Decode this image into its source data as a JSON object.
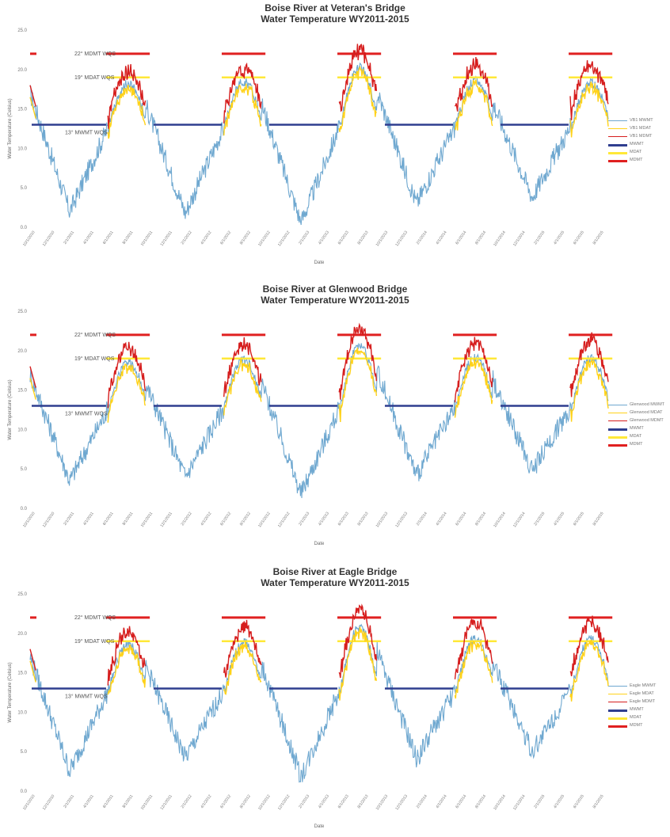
{
  "chart_data": [
    {
      "type": "line",
      "title": "Boise River at Veteran's Bridge",
      "subtitle": "Water Temperature WY2011-2015",
      "xlabel": "Date",
      "ylabel": "Water Temperature (Celsius)",
      "ylim": [
        0,
        25
      ],
      "yticks": [
        "0.0",
        "5.0",
        "10.0",
        "15.0",
        "20.0",
        "25.0"
      ],
      "xticks": [
        "10/1/2010",
        "12/1/2010",
        "2/1/2011",
        "4/1/2011",
        "6/1/2011",
        "8/1/2011",
        "10/1/2011",
        "12/1/2011",
        "2/1/2012",
        "4/1/2012",
        "6/1/2012",
        "8/1/2012",
        "10/1/2012",
        "12/1/2012",
        "2/1/2013",
        "4/1/2013",
        "6/1/2013",
        "8/1/2013",
        "10/1/2013",
        "12/1/2013",
        "2/1/2014",
        "4/1/2014",
        "6/1/2014",
        "8/1/2014",
        "10/1/2014",
        "12/1/2014",
        "2/1/2015",
        "4/1/2015",
        "6/1/2015",
        "8/1/2015"
      ],
      "annotations": [
        {
          "text": "22° MDMT WQS",
          "y": 22
        },
        {
          "text": "19° MDAT WQS",
          "y": 19
        },
        {
          "text": "13° MWMT WQS",
          "y": 13
        }
      ],
      "series": [
        {
          "name": "VB1 MWMT",
          "color": "#6fa8d0"
        },
        {
          "name": "VB1 MDAT",
          "color": "#ffd21a"
        },
        {
          "name": "VB1 MDMT",
          "color": "#d61e1e"
        },
        {
          "name": "MWMT",
          "color": "#2f3e8f"
        },
        {
          "name": "MDAT",
          "color": "#ffe838"
        },
        {
          "name": "MDMT",
          "color": "#e02020"
        }
      ],
      "grid": false,
      "legend": "right",
      "seasons": [
        {
          "base": 13.0,
          "peak": 18.2,
          "mdmtPeak": 19.0
        },
        {
          "base": 13.0,
          "peak": 18.5,
          "mdmtPeak": 19.5
        },
        {
          "base": 13.0,
          "peak": 20.2,
          "mdmtPeak": 21.8
        },
        {
          "base": 13.0,
          "peak": 18.6,
          "mdmtPeak": 19.8
        },
        {
          "base": 13.0,
          "peak": 18.3,
          "mdmtPeak": 19.8
        }
      ],
      "winterMins": [
        2.0,
        1.8,
        0.6,
        3.0,
        3.8
      ]
    },
    {
      "type": "line",
      "title": "Boise River at Glenwood Bridge",
      "subtitle": "Water Temperature WY2011-2015",
      "xlabel": "Date",
      "ylabel": "Water Temperature (Celsius)",
      "ylim": [
        0,
        25
      ],
      "yticks": [
        "0.0",
        "5.0",
        "10.0",
        "15.0",
        "20.0",
        "25.0"
      ],
      "xticks": [
        "10/1/2010",
        "12/1/2010",
        "2/1/2011",
        "4/1/2011",
        "6/1/2011",
        "8/1/2011",
        "10/1/2011",
        "12/1/2011",
        "2/1/2012",
        "4/1/2012",
        "6/1/2012",
        "8/1/2012",
        "10/1/2012",
        "12/1/2012",
        "2/1/2013",
        "4/1/2013",
        "6/1/2013",
        "8/1/2013",
        "10/1/2013",
        "12/1/2013",
        "2/1/2014",
        "4/1/2014",
        "6/1/2014",
        "8/1/2014",
        "10/1/2014",
        "12/1/2014",
        "2/1/2015",
        "4/1/2015",
        "6/1/2015",
        "8/1/2015"
      ],
      "annotations": [
        {
          "text": "22° MDMT WQS",
          "y": 22
        },
        {
          "text": "19° MDAT WQS",
          "y": 19
        },
        {
          "text": "13° MWMT WQS",
          "y": 13
        }
      ],
      "series": [
        {
          "name": "Glenwood MWMT",
          "color": "#6fa8d0"
        },
        {
          "name": "Glenwood MDAT",
          "color": "#ffd21a"
        },
        {
          "name": "Glenwood MDMT",
          "color": "#d61e1e"
        },
        {
          "name": "MWMT",
          "color": "#2f3e8f"
        },
        {
          "name": "MDAT",
          "color": "#ffe838"
        },
        {
          "name": "MDMT",
          "color": "#e02020"
        }
      ],
      "grid": false,
      "legend": "right",
      "seasons": [
        {
          "base": 13.0,
          "peak": 18.5,
          "mdmtPeak": 19.6
        },
        {
          "base": 13.0,
          "peak": 18.8,
          "mdmtPeak": 20.0
        },
        {
          "base": 13.0,
          "peak": 20.6,
          "mdmtPeak": 22.0
        },
        {
          "base": 13.0,
          "peak": 19.2,
          "mdmtPeak": 20.4
        },
        {
          "base": 13.0,
          "peak": 19.0,
          "mdmtPeak": 20.6
        }
      ],
      "winterMins": [
        3.5,
        4.0,
        1.8,
        4.2,
        4.8
      ]
    },
    {
      "type": "line",
      "title": "Boise River at Eagle Bridge",
      "subtitle": "Water Temperature WY2011-2015",
      "xlabel": "Date",
      "ylabel": "Water Temperature (Celsius)",
      "ylim": [
        0,
        25
      ],
      "yticks": [
        "0.0",
        "5.0",
        "10.0",
        "15.0",
        "20.0",
        "25.0"
      ],
      "xticks": [
        "10/1/2010",
        "12/1/2010",
        "2/1/2011",
        "4/1/2011",
        "6/1/2011",
        "8/1/2011",
        "10/1/2011",
        "12/1/2011",
        "2/1/2012",
        "4/1/2012",
        "6/1/2012",
        "8/1/2012",
        "10/1/2012",
        "12/1/2012",
        "2/1/2013",
        "4/1/2013",
        "6/1/2013",
        "8/1/2013",
        "10/1/2013",
        "12/1/2013",
        "2/1/2014",
        "4/1/2014",
        "6/1/2014",
        "8/1/2014",
        "10/1/2014",
        "12/1/2014",
        "2/1/2015",
        "4/1/2015",
        "6/1/2015",
        "8/1/2015"
      ],
      "annotations": [
        {
          "text": "22° MDMT WQS",
          "y": 22
        },
        {
          "text": "19° MDAT WQS",
          "y": 19
        },
        {
          "text": "13° MWMT WQS",
          "y": 13
        }
      ],
      "series": [
        {
          "name": "Eagle MWMT",
          "color": "#6fa8d0"
        },
        {
          "name": "Eagle MDAT",
          "color": "#ffd21a"
        },
        {
          "name": "Eagle MDMT",
          "color": "#d61e1e"
        },
        {
          "name": "MWMT",
          "color": "#2f3e8f"
        },
        {
          "name": "MDAT",
          "color": "#ffe838"
        },
        {
          "name": "MDMT",
          "color": "#e02020"
        }
      ],
      "grid": false,
      "legend": "right",
      "seasons": [
        {
          "base": 13.0,
          "peak": 18.6,
          "mdmtPeak": 19.5
        },
        {
          "base": 13.0,
          "peak": 18.9,
          "mdmtPeak": 20.2
        },
        {
          "base": 13.0,
          "peak": 20.8,
          "mdmtPeak": 22.2
        },
        {
          "base": 13.0,
          "peak": 19.3,
          "mdmtPeak": 20.6
        },
        {
          "base": 13.0,
          "peak": 19.3,
          "mdmtPeak": 20.9
        }
      ],
      "winterMins": [
        2.5,
        4.2,
        1.8,
        4.0,
        5.0
      ]
    }
  ]
}
